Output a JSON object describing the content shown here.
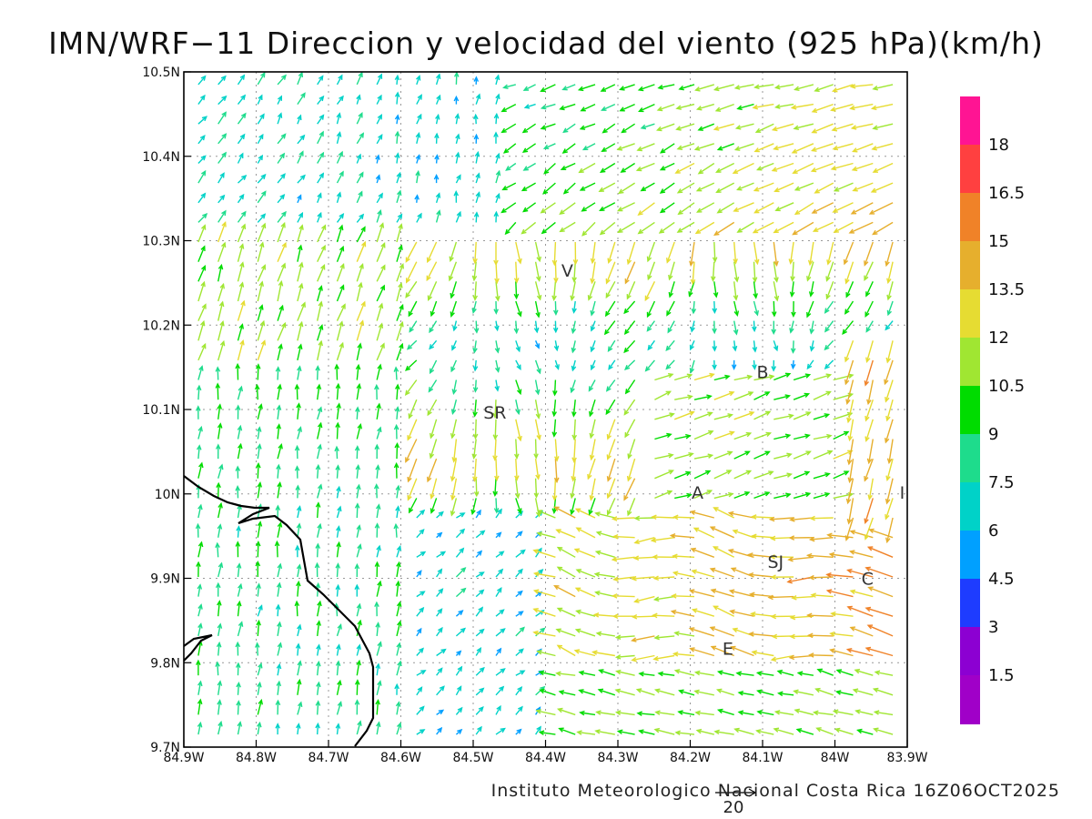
{
  "title": "IMN/WRF−11 Direccion y velocidad del viento (925 hPa)(km/h)",
  "footer": "Instituto Meteorologico Nacional Costa Rica 16Z06OCT2025",
  "reference_vector_label": "20",
  "x_ticks": [
    "84.9W",
    "84.8W",
    "84.7W",
    "84.6W",
    "84.5W",
    "84.4W",
    "84.3W",
    "84.2W",
    "84.1W",
    "84W",
    "83.9W"
  ],
  "y_ticks": [
    "10.5N",
    "10.4N",
    "10.3N",
    "10.2N",
    "10.1N",
    "10N",
    "9.9N",
    "9.8N",
    "9.7N"
  ],
  "colorbar": {
    "labels": [
      "18",
      "16.5",
      "15",
      "13.5",
      "12",
      "10.5",
      "9",
      "7.5",
      "6",
      "4.5",
      "3",
      "1.5"
    ],
    "colors": [
      "#ff1493",
      "#ff4040",
      "#f08228",
      "#e6af2d",
      "#e6dc32",
      "#a0e632",
      "#00dc00",
      "#1edc8c",
      "#00d2c8",
      "#00a0ff",
      "#1e3cff",
      "#8c00d2",
      "#a000c8"
    ]
  },
  "place_labels": [
    {
      "text": "V",
      "lon": -84.37,
      "lat": 10.265
    },
    {
      "text": "B",
      "lon": -84.1,
      "lat": 10.145
    },
    {
      "text": "SR",
      "lon": -84.47,
      "lat": 10.097
    },
    {
      "text": "A",
      "lon": -84.19,
      "lat": 10.002
    },
    {
      "text": "I",
      "lon": -83.907,
      "lat": 10.002
    },
    {
      "text": "SJ",
      "lon": -84.082,
      "lat": 9.92
    },
    {
      "text": "C",
      "lon": -83.955,
      "lat": 9.9
    },
    {
      "text": "E",
      "lon": -84.148,
      "lat": 9.817
    }
  ]
}
